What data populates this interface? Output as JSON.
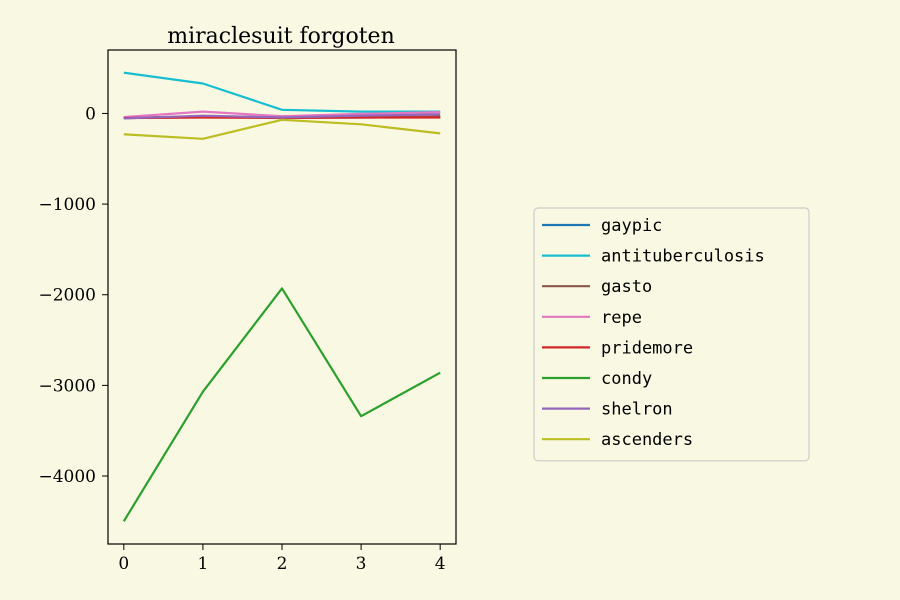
{
  "chart_data": {
    "type": "line",
    "title": "miraclesuit forgoten",
    "xlabel": "",
    "ylabel": "",
    "x": [
      0,
      1,
      2,
      3,
      4
    ],
    "xlim": [
      -0.2,
      4.2
    ],
    "ylim": [
      -4750,
      700
    ],
    "xticks": [
      0,
      1,
      2,
      3,
      4
    ],
    "yticks": [
      0,
      -1000,
      -2000,
      -3000,
      -4000
    ],
    "ytick_labels": [
      "0",
      "−1000",
      "−2000",
      "−3000",
      "−4000"
    ],
    "grid": false,
    "legend_position": "center-right",
    "series": [
      {
        "name": "gaypic",
        "color": "#1f77b4",
        "values": [
          -50,
          -40,
          -45,
          -45,
          -40
        ]
      },
      {
        "name": "antituberculosis",
        "color": "#17becf",
        "values": [
          450,
          330,
          40,
          20,
          20
        ]
      },
      {
        "name": "gasto",
        "color": "#8c564b",
        "values": [
          -45,
          -35,
          -40,
          -40,
          -35
        ]
      },
      {
        "name": "repe",
        "color": "#e377c2",
        "values": [
          -40,
          20,
          -30,
          -5,
          15
        ]
      },
      {
        "name": "pridemore",
        "color": "#d62728",
        "values": [
          -50,
          -45,
          -50,
          -45,
          -45
        ]
      },
      {
        "name": "condy",
        "color": "#2ca02c",
        "values": [
          -4500,
          -3070,
          -1930,
          -3340,
          -2860
        ]
      },
      {
        "name": "shelron",
        "color": "#9467bd",
        "values": [
          -55,
          -25,
          -45,
          -25,
          -10
        ]
      },
      {
        "name": "ascenders",
        "color": "#bcbd22",
        "values": [
          -230,
          -280,
          -70,
          -120,
          -220
        ]
      }
    ]
  }
}
